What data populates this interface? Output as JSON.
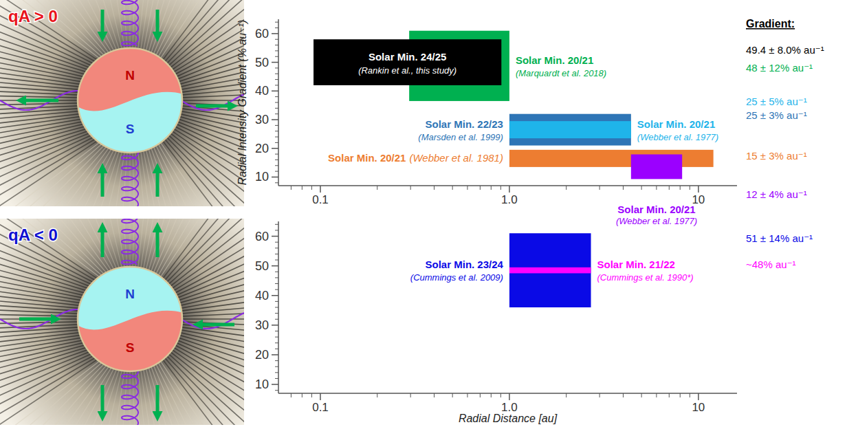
{
  "diagrams": [
    {
      "label": "qA > 0",
      "north": "N",
      "south": "S"
    },
    {
      "label": "qA < 0",
      "north": "N",
      "south": "S"
    }
  ],
  "chart_data": [
    {
      "type": "range",
      "ylabel": "Radial Intensity Gradient (% au⁻¹)",
      "log": "x",
      "grid": false,
      "xlim": [
        0.06,
        16
      ],
      "xticks": [
        0.1,
        {
          "value": 1,
          "label": "1.0"
        },
        10
      ],
      "minor_xticks": [
        0.07,
        0.08,
        0.09,
        0.2,
        0.3,
        0.4,
        0.5,
        0.6,
        0.7,
        0.8,
        0.9,
        2,
        3,
        4,
        5,
        6,
        7,
        8,
        9
      ],
      "ylim": [
        7,
        65
      ],
      "yticks": [
        10,
        20,
        30,
        40,
        50,
        60
      ],
      "minor_yticks": [
        8,
        12,
        14,
        16,
        18,
        22,
        24,
        26,
        28,
        32,
        34,
        36,
        38,
        42,
        44,
        46,
        48,
        52,
        54,
        56,
        58,
        62,
        64
      ],
      "series": [
        {
          "name": "Solar Min. 20/21",
          "annotation": "(Marquardt et al. 2018)",
          "color": "#00b050",
          "x": [
            0.295,
            1.0
          ],
          "values": [
            36.5,
            61
          ]
        },
        {
          "name": "Solar Min. 24/25",
          "annotation": "(Rankin et al., this study)",
          "color": "#000000",
          "x": [
            0.092,
            0.907
          ],
          "values": [
            42,
            58
          ]
        },
        {
          "name": "Solar Min. 22/23",
          "annotation": "(Marsden et al. 1999)",
          "color": "#2e75b6",
          "x": [
            1.0,
            4.4
          ],
          "values": [
            21,
            32
          ]
        },
        {
          "name": "Solar Min. 20/21",
          "annotation": "(Webber et al. 1977)",
          "color": "#1fb4ea",
          "x": [
            1.0,
            4.4
          ],
          "values": [
            23.5,
            29.5
          ]
        },
        {
          "name": "Solar Min. 20/21",
          "annotation": "(Webber et al. 1981)",
          "color": "#ed7d31",
          "x": [
            1.0,
            12
          ],
          "values": [
            13.5,
            19.5
          ]
        },
        {
          "name": "Solar Min. 20/21",
          "annotation": "(Webber et al. 1977)",
          "color": "#9b00ff",
          "x": [
            4.4,
            8.2
          ],
          "values": [
            9.3,
            17.9
          ]
        }
      ]
    },
    {
      "type": "range",
      "xlabel": "Radial Distance [au]",
      "log": "x",
      "grid": false,
      "xlim": [
        0.06,
        16
      ],
      "xticks": [
        0.1,
        {
          "value": 1,
          "label": "1.0"
        },
        10
      ],
      "minor_xticks": [
        0.07,
        0.08,
        0.09,
        0.2,
        0.3,
        0.4,
        0.5,
        0.6,
        0.7,
        0.8,
        0.9,
        2,
        3,
        4,
        5,
        6,
        7,
        8,
        9
      ],
      "ylim": [
        7,
        65
      ],
      "yticks": [
        10,
        20,
        30,
        40,
        50,
        60
      ],
      "minor_yticks": [
        8,
        12,
        14,
        16,
        18,
        22,
        24,
        26,
        28,
        32,
        34,
        36,
        38,
        42,
        44,
        46,
        48,
        52,
        54,
        56,
        58,
        62,
        64
      ],
      "series": [
        {
          "name": "Solar Min. 23/24",
          "annotation": "(Cummings et al. 2009)",
          "color": "#0a0ae6",
          "x": [
            1.0,
            2.7
          ],
          "values": [
            36,
            61
          ]
        },
        {
          "name": "Solar Min. 21/22",
          "annotation": "(Cummings et al. 1990*)",
          "color": "#ff00ff",
          "x": [
            1.0,
            2.7
          ],
          "values": [
            47.5,
            49.5
          ]
        }
      ]
    }
  ],
  "gradient_column": {
    "title": "Gradient:",
    "entries": [
      {
        "text": "49.4 ± 8.0% au⁻¹",
        "color": "#000000"
      },
      {
        "text": "48 ± 12% au⁻¹",
        "color": "#00b050"
      },
      {
        "text": "25 ± 5% au⁻¹",
        "color": "#1fb4ea"
      },
      {
        "text": "25 ± 3% au⁻¹",
        "color": "#2e75b6"
      },
      {
        "text": "15 ± 3% au⁻¹",
        "color": "#ed7d31"
      },
      {
        "text": "12 ± 4% au⁻¹",
        "color": "#9b00ff"
      },
      {
        "text": "51 ± 14% au⁻¹",
        "color": "#0a0ae6"
      },
      {
        "text": "~48% au⁻¹",
        "color": "#ff00ff"
      }
    ]
  }
}
